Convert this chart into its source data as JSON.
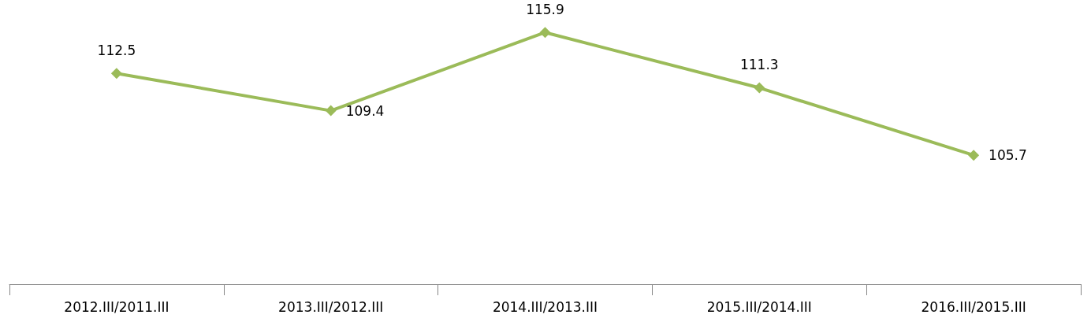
{
  "chart_data": {
    "type": "line",
    "categories": [
      "2012.III/2011.III",
      "2013.III/2012.III",
      "2014.III/2013.III",
      "2015.III/2014.III",
      "2016.III/2015.III"
    ],
    "series": [
      {
        "color": "#9bbb59",
        "values": [
          112.5,
          109.4,
          115.9,
          111.3,
          105.7
        ]
      }
    ],
    "data_labels": true,
    "marker": "diamond",
    "line_style": "solid",
    "tick_labels": "x"
  }
}
